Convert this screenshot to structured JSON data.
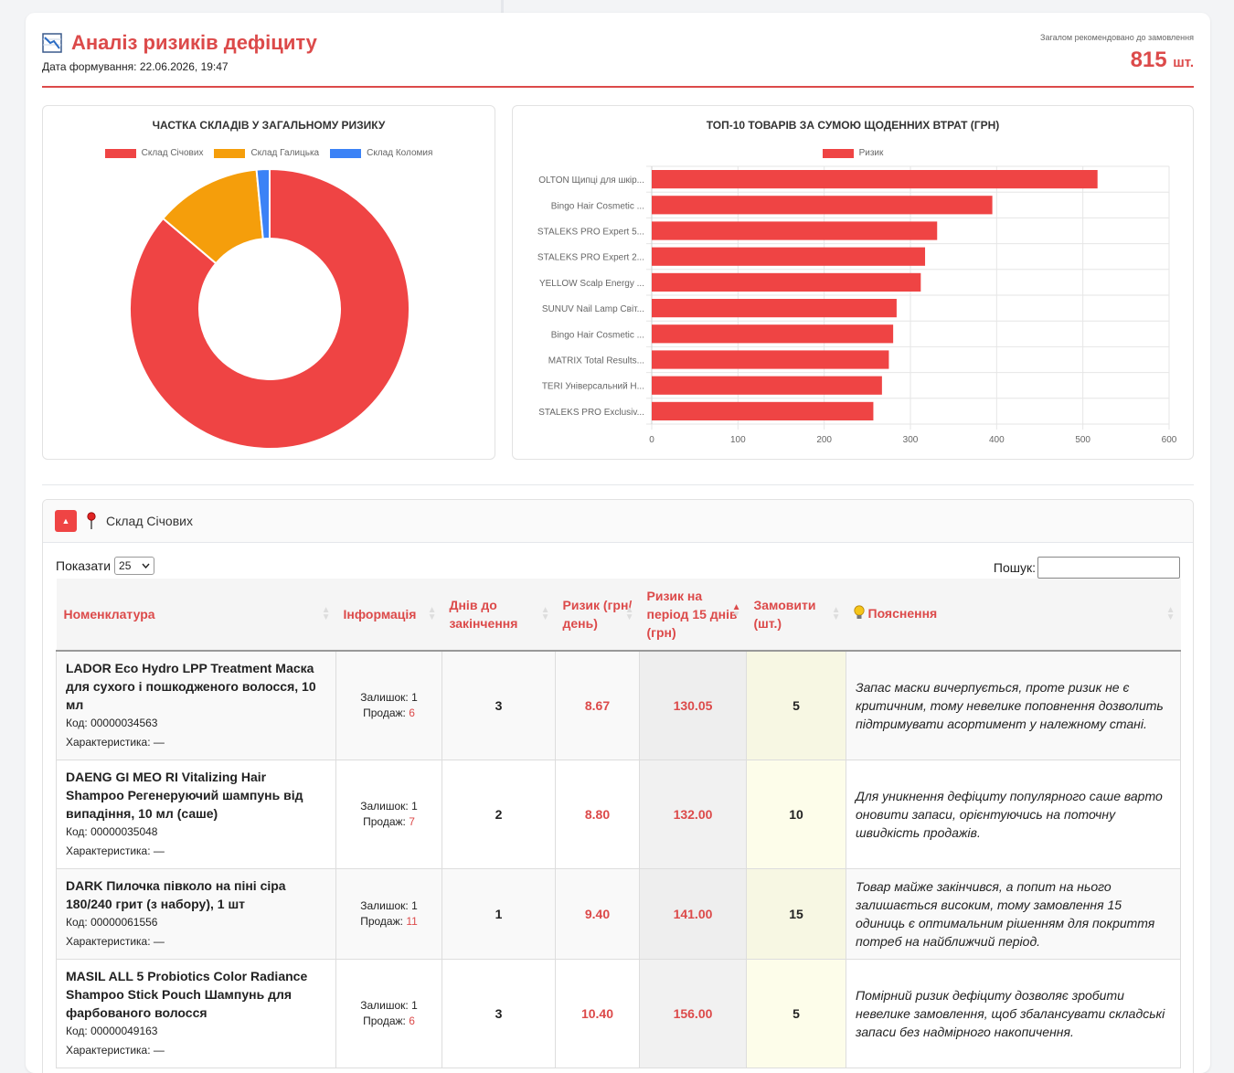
{
  "header": {
    "title": "Аналіз ризиків дефіциту",
    "date": "Дата формування: 22.06.2026, 19:47",
    "total_label": "Загалом рекомендовано до замовлення",
    "total_value": "815",
    "total_unit": "шт."
  },
  "colors": {
    "accent": "#dc4a4a",
    "red": "#ef4444",
    "orange": "#f59e0b",
    "blue": "#3b82f6"
  },
  "chart_data": [
    {
      "type": "pie",
      "title": "ЧАСТКА СКЛАДІВ У ЗАГАЛЬНОМУ РИЗИКУ",
      "labels": [
        "Склад Січових",
        "Склад Галицька",
        "Склад Коломия"
      ],
      "values": [
        86.2,
        12.3,
        1.5
      ],
      "colors": [
        "#ef4444",
        "#f59e0b",
        "#3b82f6"
      ],
      "legend": "top"
    },
    {
      "type": "bar",
      "orientation": "horizontal",
      "title": "ТОП-10 ТОВАРІВ ЗА СУМОЮ ЩОДЕННИХ ВТРАТ (ГРН)",
      "categories": [
        "OLTON Щипці для шкір...",
        "Bingo Hair Cosmetic ...",
        "STALEKS PRO Expert 5...",
        "STALEKS PRO Expert 2...",
        "YELLOW Scalp Energy ...",
        "SUNUV Nail Lamp Світ...",
        "Bingo Hair Cosmetic ...",
        "MATRIX Total Results...",
        "TERI Універсальний Н...",
        "STALEKS PRO Exclusiv..."
      ],
      "series": [
        {
          "name": "Ризик",
          "values": [
            517,
            395,
            331,
            317,
            312,
            284,
            280,
            275,
            267,
            257
          ]
        }
      ],
      "xlim": [
        0,
        600
      ],
      "xticks": [
        "0",
        "100",
        "200",
        "300",
        "400",
        "500",
        "600"
      ],
      "legend": "top",
      "grid": true
    }
  ],
  "warehouse": {
    "name": "Склад Січових",
    "toggle_icon": "▲"
  },
  "controls": {
    "show_label": "Показати",
    "page_size": "25",
    "search_label": "Пошук:"
  },
  "table": {
    "headers": [
      "Номенклатура",
      "Інформація",
      "Днів до закінчення",
      "Ризик (грн/ день)",
      "Ризик на період 15 днів (грн)",
      "Замовити (шт.)",
      "Пояснення"
    ],
    "rows": [
      {
        "name": "LADOR Eco Hydro LPP Treatment Маска для сухого і пошкодженого волосся, 10 мл",
        "code": "Код: 00000034563",
        "char": "Характеристика: —",
        "stock": "Залишок: 1",
        "sales_label": "Продаж:",
        "sales": "6",
        "days": "3",
        "risk_day": "8.67",
        "risk_period": "130.05",
        "order": "5",
        "explanation": "Запас маски вичерпується, проте ризик не є критичним, тому невелике поповнення дозволить підтримувати асортимент у належному стані."
      },
      {
        "name": "DAENG GI MEO RI Vitalizing Hair Shampoo Регенеруючий шампунь від випадіння, 10 мл (саше)",
        "code": "Код: 00000035048",
        "char": "Характеристика: —",
        "stock": "Залишок: 1",
        "sales_label": "Продаж:",
        "sales": "7",
        "days": "2",
        "risk_day": "8.80",
        "risk_period": "132.00",
        "order": "10",
        "explanation": "Для уникнення дефіциту популярного саше варто оновити запаси, орієнтуючись на поточну швидкість продажів."
      },
      {
        "name": "DARK Пилочка півколо на піні сіра 180/240 грит (з набору), 1 шт",
        "code": "Код: 00000061556",
        "char": "Характеристика: —",
        "stock": "Залишок: 1",
        "sales_label": "Продаж:",
        "sales": "11",
        "days": "1",
        "risk_day": "9.40",
        "risk_period": "141.00",
        "order": "15",
        "explanation": "Товар майже закінчився, а попит на нього залишається високим, тому замовлення 15 одиниць є оптимальним рішенням для покриття потреб на найближчий період."
      },
      {
        "name": "MASIL ALL 5 Probiotics Color Radiance Shampoo Stick Pouch Шампунь для фарбованого волосся",
        "code": "Код: 00000049163",
        "char": "Характеристика: —",
        "stock": "Залишок: 1",
        "sales_label": "Продаж:",
        "sales": "6",
        "days": "3",
        "risk_day": "10.40",
        "risk_period": "156.00",
        "order": "5",
        "explanation": "Помірний ризик дефіциту дозволяє зробити невелике замовлення, щоб збалансувати складські запаси без надмірного накопичення."
      }
    ]
  }
}
